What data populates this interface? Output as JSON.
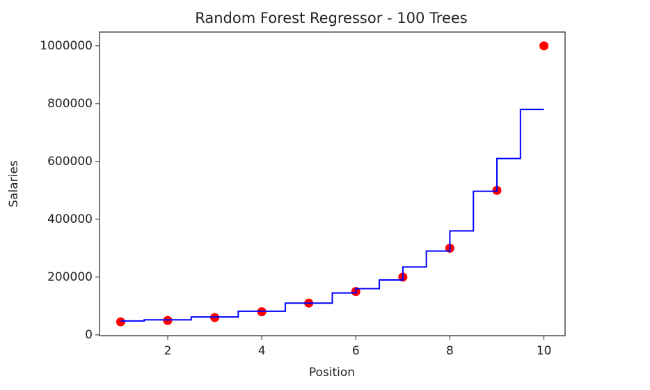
{
  "chart_data": {
    "type": "scatter",
    "title": "Random Forest Regressor - 100 Trees",
    "x_label": "Position",
    "y_label": "Salaries",
    "xlim": [
      0.55,
      10.45
    ],
    "ylim": [
      -2750,
      1047750
    ],
    "xticks": [
      2,
      4,
      6,
      8,
      10
    ],
    "yticks": [
      0,
      200000,
      400000,
      600000,
      800000,
      1000000
    ],
    "series": [
      {
        "type": "scatter",
        "color": "#ff0000",
        "x": [
          1,
          2,
          3,
          4,
          5,
          6,
          7,
          8,
          9,
          10
        ],
        "values": [
          45000,
          50000,
          60000,
          80000,
          110000,
          150000,
          200000,
          300000,
          500000,
          1000000
        ]
      },
      {
        "type": "line",
        "color": "#0000ff",
        "x": [
          1,
          1.5,
          1.5,
          2.5,
          2.5,
          3.5,
          3.5,
          4.5,
          4.5,
          5.5,
          5.5,
          6,
          6,
          6.5,
          6.5,
          7,
          7,
          7.5,
          7.5,
          8,
          8,
          8.5,
          8.5,
          9,
          9,
          9.5,
          9.5,
          10
        ],
        "values": [
          48000,
          48000,
          52000,
          52000,
          62000,
          62000,
          82000,
          82000,
          110000,
          110000,
          145000,
          145000,
          160000,
          160000,
          190000,
          190000,
          235000,
          235000,
          290000,
          290000,
          360000,
          360000,
          497000,
          497000,
          610000,
          610000,
          780000,
          780000
        ]
      }
    ]
  }
}
